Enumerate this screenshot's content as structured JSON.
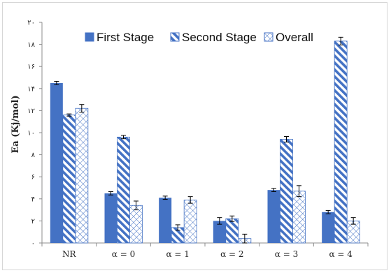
{
  "chart_data": {
    "type": "bar",
    "ylabel": "Ea (Kj/mol)",
    "xlabel": "",
    "ylim": [
      0,
      20
    ],
    "yticks": [
      {
        "value": 0,
        "label": "۰"
      },
      {
        "value": 2,
        "label": "۲"
      },
      {
        "value": 4,
        "label": "۴"
      },
      {
        "value": 6,
        "label": "۶"
      },
      {
        "value": 8,
        "label": "۸"
      },
      {
        "value": 10,
        "label": "۱۰"
      },
      {
        "value": 12,
        "label": "۱۲"
      },
      {
        "value": 14,
        "label": "۱۴"
      },
      {
        "value": 16,
        "label": "۱۶"
      },
      {
        "value": 18,
        "label": "۱۸"
      },
      {
        "value": 20,
        "label": "۲۰"
      }
    ],
    "categories": [
      "NR",
      "α = 0",
      "α = 1",
      "α = 2",
      "α = 3",
      "α = 4"
    ],
    "series": [
      {
        "name": "First Stage",
        "style": "solid",
        "color": "#4472c4",
        "values": [
          14.5,
          4.5,
          4.1,
          2.0,
          4.8,
          2.8
        ],
        "errors": [
          0.15,
          0.15,
          0.15,
          0.3,
          0.15,
          0.15
        ]
      },
      {
        "name": "Second Stage",
        "style": "diagonal",
        "color": "#4472c4",
        "values": [
          11.6,
          9.6,
          1.4,
          2.2,
          9.4,
          18.3
        ],
        "errors": [
          0.1,
          0.15,
          0.25,
          0.25,
          0.25,
          0.35
        ]
      },
      {
        "name": "Overall",
        "style": "crosshatch",
        "color": "#4472c4",
        "values": [
          12.2,
          3.4,
          3.9,
          0.4,
          4.7,
          2.0
        ],
        "errors": [
          0.35,
          0.4,
          0.3,
          0.4,
          0.5,
          0.3
        ]
      }
    ],
    "legend_position": "top",
    "grid": false,
    "error_bars": true
  }
}
